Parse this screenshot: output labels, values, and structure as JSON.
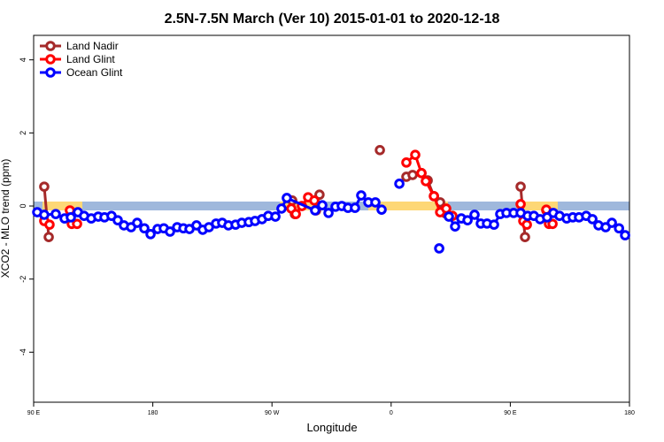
{
  "chart_data": {
    "type": "line",
    "title": "2.5N-7.5N March (Ver 10)   2015-01-01 to 2020-12-18",
    "x_label": "Longitude",
    "y_label": "XCO2 - MLO trend (ppm)",
    "xlim": [
      90,
      540
    ],
    "xticks": [
      {
        "value": 90,
        "label": "90 E"
      },
      180,
      {
        "value": 270,
        "label": "90 W"
      },
      {
        "value": 360,
        "label": "0"
      },
      {
        "value": 450,
        "label": "90 E"
      },
      {
        "value": 540,
        "label": "180"
      }
    ],
    "ylim": [
      -5.37,
      4.67
    ],
    "yticks": [
      -4,
      -2,
      0,
      2,
      4
    ],
    "legend": "top-left",
    "series": [
      {
        "name": "Land Nadir",
        "color": "#a52a2a",
        "x": [
          98.0,
          101.4,
          null,
          285.3,
          287.3,
          null,
          303.3,
          305.9,
          null,
          351.5,
          null,
          371.5,
          376.2,
          382.9,
          387.6,
          392.3,
          397.0,
          401.0,
          null,
          457.8,
          461.1,
          null,
          477.2
        ],
        "values": [
          0.53,
          -0.85,
          null,
          0.15,
          -0.22,
          null,
          -0.12,
          0.31,
          null,
          1.53,
          null,
          0.8,
          0.85,
          0.9,
          0.7,
          0.27,
          0.1,
          -0.2,
          null,
          0.53,
          -0.85,
          null,
          -0.12
        ]
      },
      {
        "name": "Land Glint",
        "color": "#ff0000",
        "x": [
          98.0,
          102.0,
          null,
          117.4,
          118.8,
          122.8,
          null,
          284.6,
          288.0,
          292.6,
          297.3,
          302.0,
          null,
          371.5,
          378.2,
          382.9,
          386.2,
          392.3,
          397.0,
          401.6,
          406.3,
          null,
          457.8,
          459.8,
          462.5,
          null,
          477.2,
          479.2,
          481.9
        ],
        "values": [
          -0.41,
          -0.51,
          null,
          -0.12,
          -0.49,
          -0.49,
          null,
          -0.07,
          -0.22,
          0.0,
          0.24,
          0.15,
          null,
          1.19,
          1.4,
          0.9,
          0.68,
          0.27,
          -0.17,
          -0.07,
          -0.27,
          null,
          0.05,
          -0.41,
          -0.51,
          null,
          -0.1,
          -0.49,
          -0.49
        ]
      },
      {
        "name": "Ocean Glint",
        "color": "#0000ff",
        "x": [
          92.7,
          98.0,
          106.7,
          113.4,
          118.1,
          123.4,
          128.1,
          133.5,
          138.8,
          143.5,
          148.8,
          153.5,
          158.2,
          163.6,
          168.2,
          173.6,
          178.3,
          183.6,
          188.3,
          193.0,
          198.4,
          203.1,
          207.7,
          213.0,
          217.7,
          222.4,
          227.8,
          232.4,
          237.1,
          242.5,
          247.2,
          252.5,
          257.2,
          262.5,
          267.2,
          272.6,
          277.2,
          281.2,
          302.6,
          308.0,
          312.7,
          318.0,
          322.7,
          327.4,
          332.7,
          337.4,
          342.8,
          348.1,
          352.8,
          null,
          366.2,
          null,
          396.3,
          null,
          403.6,
          408.3,
          413.0,
          417.7,
          423.0,
          427.7,
          432.4,
          437.7,
          442.4,
          447.1,
          452.5,
          457.8,
          463.1,
          467.8,
          472.5,
          477.8,
          482.5,
          487.2,
          492.6,
          497.2,
          501.9,
          507.3,
          512.0,
          516.6,
          522.0,
          526.7,
          532.1,
          536.7
        ],
        "values": [
          -0.17,
          -0.24,
          -0.22,
          -0.34,
          -0.31,
          -0.17,
          -0.27,
          -0.34,
          -0.29,
          -0.31,
          -0.27,
          -0.39,
          -0.53,
          -0.58,
          -0.46,
          -0.61,
          -0.77,
          -0.63,
          -0.61,
          -0.7,
          -0.58,
          -0.61,
          -0.63,
          -0.53,
          -0.65,
          -0.58,
          -0.48,
          -0.46,
          -0.53,
          -0.51,
          -0.46,
          -0.44,
          -0.41,
          -0.36,
          -0.27,
          -0.29,
          -0.07,
          0.22,
          -0.12,
          0.02,
          -0.19,
          -0.02,
          0,
          -0.05,
          -0.05,
          0.29,
          0.1,
          0.1,
          -0.1,
          null,
          0.61,
          null,
          -1.16,
          null,
          -0.29,
          -0.56,
          -0.34,
          -0.39,
          -0.24,
          -0.48,
          -0.48,
          -0.51,
          -0.22,
          -0.19,
          -0.19,
          -0.19,
          -0.27,
          -0.27,
          -0.36,
          -0.31,
          -0.19,
          -0.27,
          -0.34,
          -0.31,
          -0.31,
          -0.27,
          -0.36,
          -0.53,
          -0.58,
          -0.46,
          -0.61,
          -0.8
        ]
      }
    ]
  }
}
